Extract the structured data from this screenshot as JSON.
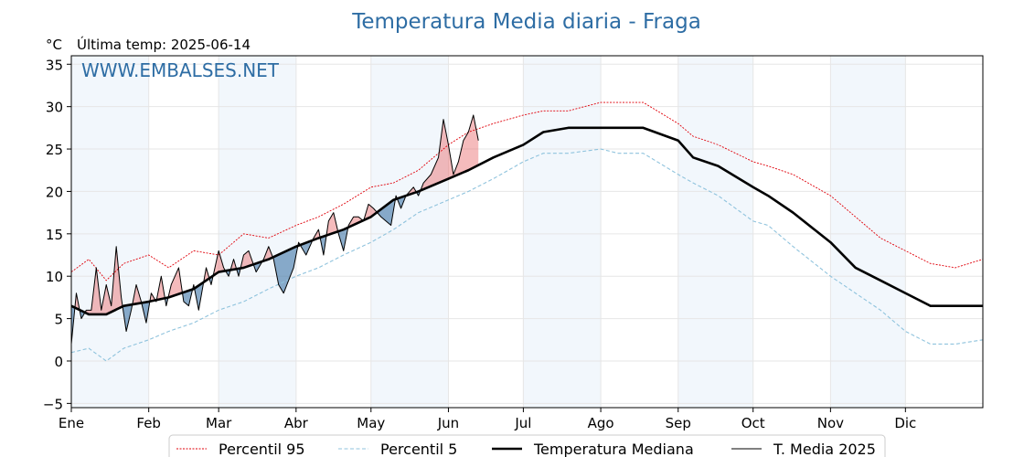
{
  "chart_data": {
    "type": "line",
    "title": "Temperatura Media diaria - Fraga",
    "unit_label": "°C",
    "last_temp_label": "Última temp: 2025-06-14",
    "watermark": "WWW.EMBALSES.NET",
    "ylim": [
      -5.5,
      36
    ],
    "y_ticks": [
      -5,
      0,
      5,
      10,
      15,
      20,
      25,
      30,
      35
    ],
    "x_axis": {
      "unit": "day of year",
      "range": [
        1,
        366
      ],
      "month_labels": [
        "Ene",
        "Feb",
        "Mar",
        "Abr",
        "May",
        "Jun",
        "Jul",
        "Ago",
        "Sep",
        "Oct",
        "Nov",
        "Dic"
      ],
      "month_start_days": [
        1,
        32,
        60,
        91,
        121,
        152,
        182,
        213,
        244,
        274,
        305,
        335
      ]
    },
    "grid": true,
    "legend_placement": "bottom",
    "series": [
      {
        "name": "Percentil 95",
        "color": "#e0000a",
        "style": "dotted",
        "points": [
          [
            1,
            10.5
          ],
          [
            8,
            12
          ],
          [
            15,
            9.5
          ],
          [
            22,
            11.5
          ],
          [
            32,
            12.5
          ],
          [
            40,
            11
          ],
          [
            50,
            13
          ],
          [
            60,
            12.5
          ],
          [
            70,
            15
          ],
          [
            80,
            14.5
          ],
          [
            91,
            16
          ],
          [
            100,
            17
          ],
          [
            110,
            18.5
          ],
          [
            121,
            20.5
          ],
          [
            130,
            21
          ],
          [
            140,
            22.5
          ],
          [
            152,
            25.5
          ],
          [
            160,
            27
          ],
          [
            170,
            28
          ],
          [
            182,
            29
          ],
          [
            190,
            29.5
          ],
          [
            200,
            29.5
          ],
          [
            213,
            30.5
          ],
          [
            220,
            30.5
          ],
          [
            230,
            30.5
          ],
          [
            244,
            28
          ],
          [
            250,
            26.5
          ],
          [
            260,
            25.5
          ],
          [
            274,
            23.5
          ],
          [
            280,
            23
          ],
          [
            290,
            22
          ],
          [
            305,
            19.5
          ],
          [
            315,
            17
          ],
          [
            325,
            14.5
          ],
          [
            335,
            13
          ],
          [
            345,
            11.5
          ],
          [
            355,
            11
          ],
          [
            366,
            12
          ]
        ]
      },
      {
        "name": "Percentil 5",
        "color": "#8fc3dd",
        "style": "dashed",
        "points": [
          [
            1,
            1
          ],
          [
            8,
            1.5
          ],
          [
            15,
            0
          ],
          [
            22,
            1.5
          ],
          [
            32,
            2.5
          ],
          [
            40,
            3.5
          ],
          [
            50,
            4.5
          ],
          [
            60,
            6
          ],
          [
            70,
            7
          ],
          [
            80,
            8.5
          ],
          [
            91,
            10
          ],
          [
            100,
            11
          ],
          [
            110,
            12.5
          ],
          [
            121,
            14
          ],
          [
            130,
            15.5
          ],
          [
            140,
            17.5
          ],
          [
            152,
            19
          ],
          [
            160,
            20
          ],
          [
            170,
            21.5
          ],
          [
            182,
            23.5
          ],
          [
            190,
            24.5
          ],
          [
            200,
            24.5
          ],
          [
            213,
            25
          ],
          [
            220,
            24.5
          ],
          [
            230,
            24.5
          ],
          [
            244,
            22
          ],
          [
            250,
            21
          ],
          [
            260,
            19.5
          ],
          [
            274,
            16.5
          ],
          [
            280,
            16
          ],
          [
            290,
            13.5
          ],
          [
            305,
            10
          ],
          [
            315,
            8
          ],
          [
            325,
            6
          ],
          [
            335,
            3.5
          ],
          [
            345,
            2
          ],
          [
            355,
            2
          ],
          [
            366,
            2.5
          ]
        ]
      },
      {
        "name": "Temperatura Mediana",
        "color": "#000000",
        "style": "thick",
        "points": [
          [
            1,
            6.5
          ],
          [
            8,
            5.5
          ],
          [
            15,
            5.5
          ],
          [
            22,
            6.5
          ],
          [
            32,
            7
          ],
          [
            40,
            7.5
          ],
          [
            50,
            8.5
          ],
          [
            60,
            10.5
          ],
          [
            70,
            11
          ],
          [
            80,
            12
          ],
          [
            91,
            13.5
          ],
          [
            100,
            14.5
          ],
          [
            110,
            15.5
          ],
          [
            121,
            17
          ],
          [
            130,
            19
          ],
          [
            140,
            20
          ],
          [
            152,
            21.5
          ],
          [
            160,
            22.5
          ],
          [
            170,
            24
          ],
          [
            182,
            25.5
          ],
          [
            190,
            27
          ],
          [
            200,
            27.5
          ],
          [
            213,
            27.5
          ],
          [
            220,
            27.5
          ],
          [
            230,
            27.5
          ],
          [
            244,
            26
          ],
          [
            250,
            24
          ],
          [
            260,
            23
          ],
          [
            274,
            20.5
          ],
          [
            280,
            19.5
          ],
          [
            290,
            17.5
          ],
          [
            305,
            14
          ],
          [
            315,
            11
          ],
          [
            325,
            9.5
          ],
          [
            335,
            8
          ],
          [
            345,
            6.5
          ],
          [
            355,
            6.5
          ],
          [
            366,
            6.5
          ]
        ]
      },
      {
        "name": "T. Media 2025",
        "color": "#000000",
        "style": "thin",
        "points": [
          [
            1,
            2
          ],
          [
            3,
            8
          ],
          [
            5,
            5
          ],
          [
            7,
            6
          ],
          [
            9,
            6
          ],
          [
            11,
            11
          ],
          [
            13,
            6
          ],
          [
            15,
            9
          ],
          [
            17,
            6.5
          ],
          [
            19,
            13.5
          ],
          [
            21,
            7.5
          ],
          [
            23,
            3.5
          ],
          [
            25,
            6
          ],
          [
            27,
            9
          ],
          [
            29,
            7
          ],
          [
            31,
            4.5
          ],
          [
            33,
            8
          ],
          [
            35,
            7
          ],
          [
            37,
            10
          ],
          [
            39,
            6.5
          ],
          [
            41,
            9
          ],
          [
            44,
            11
          ],
          [
            46,
            7
          ],
          [
            48,
            6.5
          ],
          [
            50,
            9
          ],
          [
            52,
            6
          ],
          [
            55,
            11
          ],
          [
            57,
            9
          ],
          [
            60,
            13
          ],
          [
            62,
            11
          ],
          [
            64,
            10
          ],
          [
            66,
            12
          ],
          [
            68,
            10
          ],
          [
            70,
            12.5
          ],
          [
            72,
            13
          ],
          [
            75,
            10.5
          ],
          [
            78,
            12
          ],
          [
            80,
            13.5
          ],
          [
            82,
            12
          ],
          [
            84,
            9
          ],
          [
            86,
            8
          ],
          [
            88,
            9.5
          ],
          [
            90,
            11
          ],
          [
            92,
            14
          ],
          [
            95,
            12.5
          ],
          [
            98,
            14.5
          ],
          [
            100,
            15.5
          ],
          [
            102,
            12.5
          ],
          [
            104,
            16.5
          ],
          [
            106,
            17.5
          ],
          [
            108,
            15
          ],
          [
            110,
            13
          ],
          [
            112,
            16
          ],
          [
            114,
            17
          ],
          [
            116,
            17
          ],
          [
            118,
            16.5
          ],
          [
            120,
            18.5
          ],
          [
            122,
            18
          ],
          [
            125,
            17
          ],
          [
            127,
            16.5
          ],
          [
            129,
            16
          ],
          [
            131,
            19.5
          ],
          [
            133,
            18
          ],
          [
            135,
            19.5
          ],
          [
            138,
            20.5
          ],
          [
            140,
            19.5
          ],
          [
            142,
            21
          ],
          [
            145,
            22
          ],
          [
            148,
            24
          ],
          [
            150,
            28.5
          ],
          [
            152,
            25.5
          ],
          [
            154,
            22
          ],
          [
            156,
            23.5
          ],
          [
            158,
            26
          ],
          [
            160,
            27
          ],
          [
            162,
            29
          ],
          [
            164,
            26
          ]
        ]
      }
    ],
    "anomaly_shading": {
      "above_median_color": "#e8686a",
      "below_median_color": "#3d74a6",
      "applies_to": "T. Media 2025"
    }
  }
}
